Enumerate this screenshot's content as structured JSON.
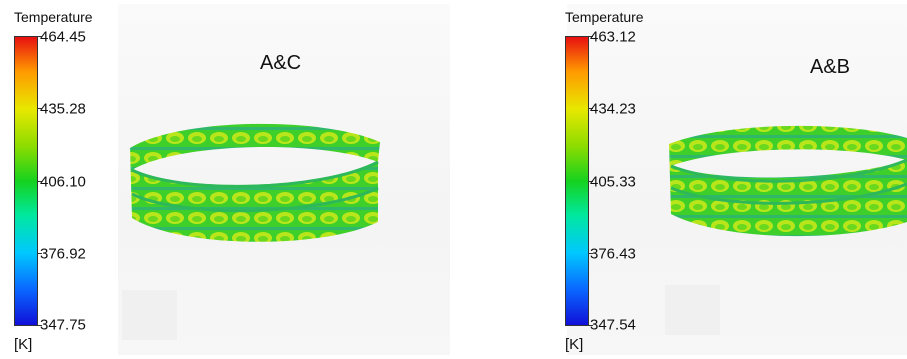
{
  "left_panel": {
    "legend_title": "Temperature",
    "unit": "[K]",
    "ticks": [
      "464.45",
      "435.28",
      "406.10",
      "376.92",
      "347.75"
    ],
    "case_label": "A&C"
  },
  "right_panel": {
    "legend_title": "Temperature",
    "unit": "[K]",
    "ticks": [
      "463.12",
      "434.23",
      "405.33",
      "376.43",
      "347.54"
    ],
    "case_label": "A&B"
  },
  "colors": {
    "colormap": [
      "#1010d8",
      "#0a64ff",
      "#00c8ff",
      "#00e8a0",
      "#16d21e",
      "#8cdc00",
      "#e8e800",
      "#ff9a00",
      "#e81010"
    ],
    "packing_green": "#3fcf2a",
    "packing_yellow": "#b8e61a"
  }
}
